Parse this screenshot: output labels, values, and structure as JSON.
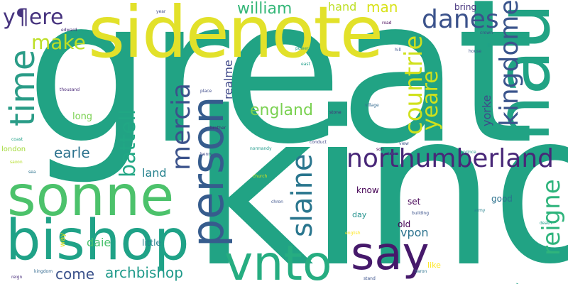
{
  "words": [
    {
      "text": "great",
      "color": "#21a384"
    },
    {
      "text": "king",
      "color": "#21a384"
    },
    {
      "text": "sidenote",
      "color": "#e2e12a"
    },
    {
      "text": "haue",
      "color": "#21a384"
    },
    {
      "text": "sonne",
      "color": "#4cc26b"
    },
    {
      "text": "bishop",
      "color": "#1fa287"
    },
    {
      "text": "person",
      "color": "#365c8d"
    },
    {
      "text": "vnto",
      "color": "#26ad81"
    },
    {
      "text": "say",
      "color": "#46196b"
    },
    {
      "text": "time",
      "color": "#2a9c87"
    },
    {
      "text": "northumberland",
      "color": "#482778"
    },
    {
      "text": "kingdome",
      "color": "#3a548c"
    },
    {
      "text": "countrie",
      "color": "#d0e11c"
    },
    {
      "text": "mercia",
      "color": "#3b528b"
    },
    {
      "text": "slaine",
      "color": "#2a768e"
    },
    {
      "text": "danes",
      "color": "#3b528b"
    },
    {
      "text": "yeare",
      "color": "#d0e11c"
    },
    {
      "text": "reigne",
      "color": "#2fb47c"
    },
    {
      "text": "battell",
      "color": "#21a784"
    },
    {
      "text": "y¶ere",
      "color": "#46337e"
    },
    {
      "text": "make",
      "color": "#bddf26"
    },
    {
      "text": "william",
      "color": "#35b779"
    },
    {
      "text": "england",
      "color": "#7ad151"
    },
    {
      "text": "earle",
      "color": "#2c728e"
    },
    {
      "text": "archbishop",
      "color": "#1f9a8a"
    },
    {
      "text": "come",
      "color": "#3b528b"
    },
    {
      "text": "man",
      "color": "#d8e219"
    },
    {
      "text": "hand",
      "color": "#bddf26"
    },
    {
      "text": "realme",
      "color": "#3f4889"
    },
    {
      "text": "land",
      "color": "#26828e"
    },
    {
      "text": "daie",
      "color": "#4ac16d"
    },
    {
      "text": "vpon",
      "color": "#2c728e"
    },
    {
      "text": "yorke",
      "color": "#3e4a89"
    },
    {
      "text": "long",
      "color": "#7ad151"
    },
    {
      "text": "london",
      "color": "#a2da37"
    },
    {
      "text": "little",
      "color": "#277f8e"
    },
    {
      "text": "good",
      "color": "#2c728e"
    },
    {
      "text": "bring",
      "color": "#46337e"
    },
    {
      "text": "know",
      "color": "#440154"
    },
    {
      "text": "set",
      "color": "#440154"
    },
    {
      "text": "old",
      "color": "#440154"
    },
    {
      "text": "day",
      "color": "#21918c"
    },
    {
      "text": "way",
      "color": "#d8e219"
    },
    {
      "text": "like",
      "color": "#fde725"
    },
    {
      "text": "edward",
      "color": "#472d7b"
    },
    {
      "text": "year",
      "color": "#3e4a89"
    },
    {
      "text": "road",
      "color": "#440154"
    },
    {
      "text": "crown",
      "color": "#3e4a89"
    },
    {
      "text": "lib",
      "color": "#1fa188"
    },
    {
      "text": "house",
      "color": "#3b528b"
    },
    {
      "text": "hill",
      "color": "#3b528b"
    },
    {
      "text": "thousand",
      "color": "#482677"
    },
    {
      "text": "place",
      "color": "#3e4a89"
    },
    {
      "text": "east",
      "color": "#1f9e89"
    },
    {
      "text": "power",
      "color": "#1f9e89"
    },
    {
      "text": "stone",
      "color": "#482878"
    },
    {
      "text": "village",
      "color": "#31688e"
    },
    {
      "text": "brother",
      "color": "#482878"
    },
    {
      "text": "coast",
      "color": "#1fa188"
    },
    {
      "text": "henry",
      "color": "#3e4a89"
    },
    {
      "text": "normandy",
      "color": "#1f9a8a"
    },
    {
      "text": "conduct",
      "color": "#404688"
    },
    {
      "text": "son",
      "color": "#440154"
    },
    {
      "text": "view",
      "color": "#3b528b"
    },
    {
      "text": "town",
      "color": "#3b528b"
    },
    {
      "text": "prince",
      "color": "#1f9a8a"
    },
    {
      "text": "saxon",
      "color": "#b5de2b"
    },
    {
      "text": "sea",
      "color": "#2c728e"
    },
    {
      "text": "church",
      "color": "#d8e219"
    },
    {
      "text": "english",
      "color": "#fde725"
    },
    {
      "text": "chron",
      "color": "#3b528b"
    },
    {
      "text": "building",
      "color": "#3b528b"
    },
    {
      "text": "army",
      "color": "#26828e"
    },
    {
      "text": "death",
      "color": "#1f9e89"
    },
    {
      "text": "kingdom",
      "color": "#31688e"
    },
    {
      "text": "reign",
      "color": "#472d7b"
    },
    {
      "text": "stand",
      "color": "#3b528b"
    },
    {
      "text": "baron",
      "color": "#2c728e"
    },
    {
      "text": "receive",
      "color": "#9fda3a"
    },
    {
      "text": "leave",
      "color": "#bddf26"
    },
    {
      "text": "enemy",
      "color": "#d8e219"
    },
    {
      "text": "present",
      "color": "#3b528b"
    },
    {
      "text": "order",
      "color": "#fde725"
    },
    {
      "text": "law",
      "color": "#4ac16d"
    },
    {
      "text": "hill",
      "color": "#26828e"
    },
    {
      "text": "idea",
      "color": "#7ad151"
    }
  ]
}
